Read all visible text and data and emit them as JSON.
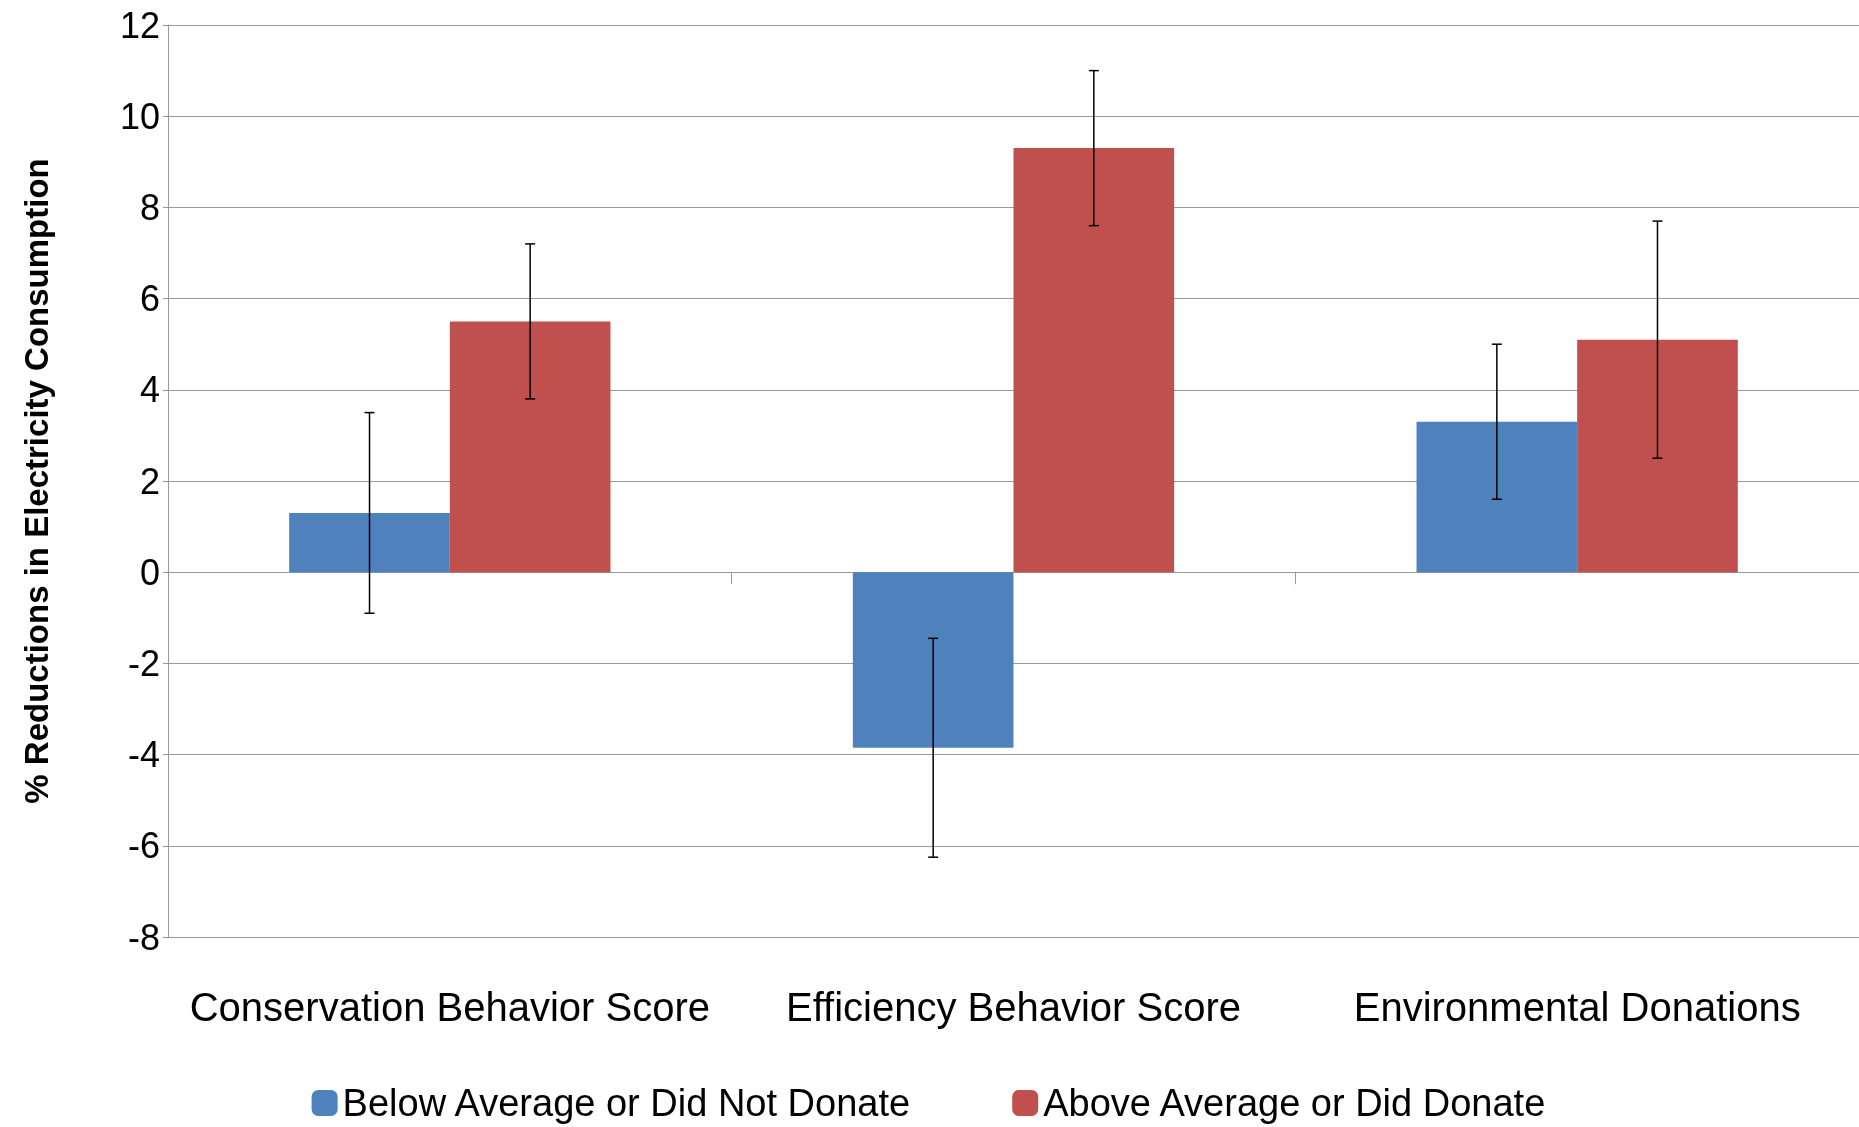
{
  "chart_data": {
    "type": "bar",
    "ylabel": "% Reductions in Electricity Consumption",
    "categories": [
      "Conservation Behavior Score",
      "Efficiency Behavior Score",
      "Environmental Donations"
    ],
    "series": [
      {
        "name": "Below Average or Did Not Donate",
        "color": "#4f81bd",
        "values": [
          1.3,
          -3.85,
          3.3
        ],
        "errors": [
          2.2,
          2.4,
          1.7
        ]
      },
      {
        "name": "Above Average or Did Donate",
        "color": "#c0504d",
        "values": [
          5.5,
          9.3,
          5.1
        ],
        "errors": [
          1.7,
          1.7,
          2.6
        ]
      }
    ],
    "ylim": [
      -8,
      12
    ],
    "yticks": [
      -8,
      -6,
      -4,
      -2,
      0,
      2,
      4,
      6,
      8,
      10,
      12
    ],
    "grid": "y",
    "legend": "bottom"
  }
}
